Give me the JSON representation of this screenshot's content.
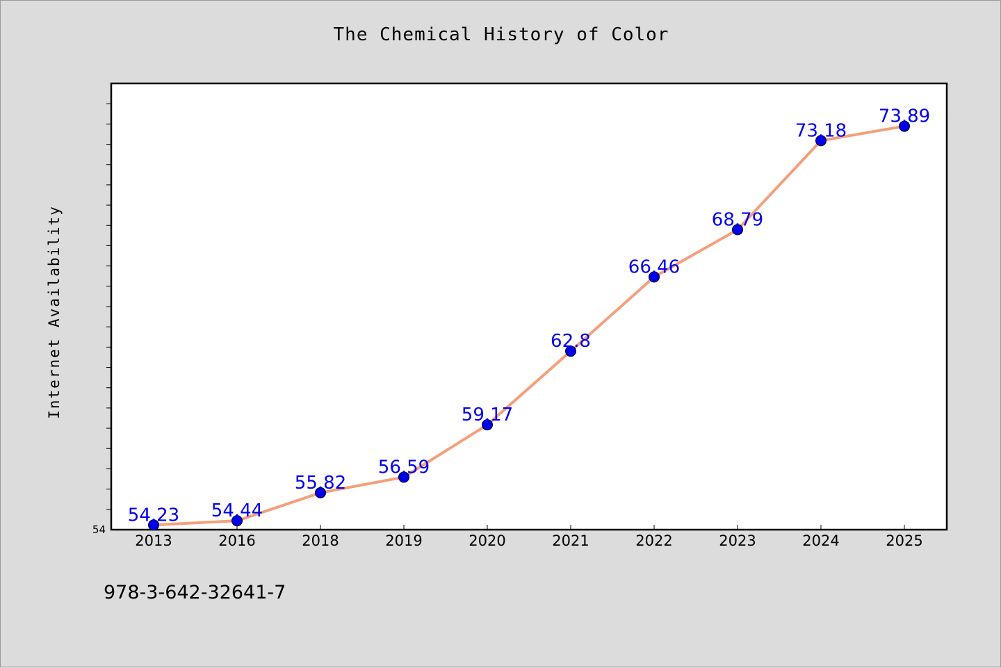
{
  "title": "The Chemical History of Color",
  "footer_text": "978-3-642-32641-7",
  "colors": {
    "line": "#f4a07c",
    "marker": "#0000ee",
    "label": "#0000ee",
    "background": "#dcdcdc",
    "plot_background": "#ffffff"
  },
  "chart_data": {
    "type": "line",
    "title": "The Chemical History of Color",
    "xlabel": "",
    "ylabel": "Internet Availability",
    "categories": [
      "2013",
      "2016",
      "2018",
      "2019",
      "2020",
      "2021",
      "2022",
      "2023",
      "2024",
      "2025"
    ],
    "series": [
      {
        "values": [
          54.23,
          54.44,
          55.82,
          56.59,
          59.17,
          62.8,
          66.46,
          68.79,
          73.18,
          73.89
        ]
      }
    ],
    "data_labels": [
      "54.23",
      "54.44",
      "55.82",
      "56.59",
      "59.17",
      "62.8",
      "66.46",
      "68.79",
      "73.18",
      "73.89"
    ],
    "ylim": [
      54,
      76
    ],
    "y_tick_labels": [
      "54"
    ],
    "y_minor_tick_step": 1,
    "grid": false,
    "legend": "none"
  }
}
